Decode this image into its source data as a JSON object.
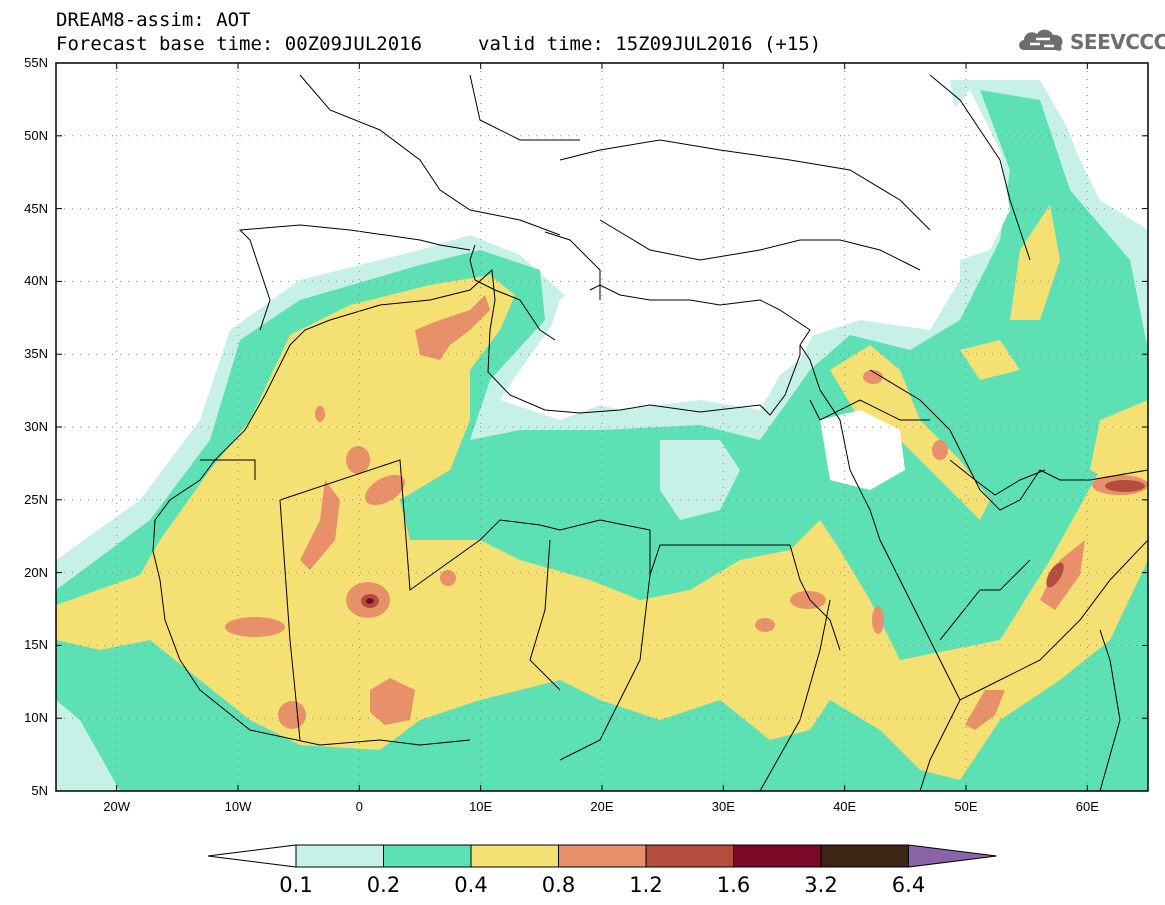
{
  "title": {
    "line1": "DREAM8-assim: AOT",
    "line2": "Forecast base time: 00Z09JUL2016",
    "valid": "valid time: 15Z09JUL2016 (+15)"
  },
  "logo": {
    "text": "SEEVCCC",
    "icon": "cloud-logo-icon",
    "color": "#6d6e70"
  },
  "map": {
    "lon_range": [
      -25,
      65
    ],
    "lat_range": [
      5,
      55
    ],
    "lat_ticks": [
      "55N",
      "50N",
      "45N",
      "40N",
      "35N",
      "30N",
      "25N",
      "20N",
      "15N",
      "10N",
      "5N"
    ],
    "lon_ticks": [
      "20W",
      "10W",
      "0",
      "10E",
      "20E",
      "30E",
      "40E",
      "50E",
      "60E"
    ]
  },
  "colorbar": {
    "labels": [
      "0.1",
      "0.2",
      "0.4",
      "0.8",
      "1.2",
      "1.6",
      "3.2",
      "6.4"
    ],
    "colors": [
      "#ffffff",
      "#c6f0e8",
      "#5ee0b5",
      "#f5e074",
      "#e8906a",
      "#b54d3e",
      "#7a0a26",
      "#3d2414",
      "#8d63a8"
    ]
  }
}
